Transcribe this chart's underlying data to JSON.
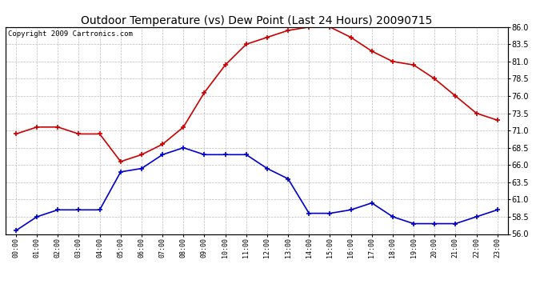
{
  "title": "Outdoor Temperature (vs) Dew Point (Last 24 Hours) 20090715",
  "copyright": "Copyright 2009 Cartronics.com",
  "hours": [
    "00:00",
    "01:00",
    "02:00",
    "03:00",
    "04:00",
    "05:00",
    "06:00",
    "07:00",
    "08:00",
    "09:00",
    "10:00",
    "11:00",
    "12:00",
    "13:00",
    "14:00",
    "15:00",
    "16:00",
    "17:00",
    "18:00",
    "19:00",
    "20:00",
    "21:00",
    "22:00",
    "23:00"
  ],
  "temp": [
    70.5,
    71.5,
    71.5,
    70.5,
    70.5,
    66.5,
    67.5,
    69.0,
    71.5,
    76.5,
    80.5,
    83.5,
    84.5,
    85.5,
    86.0,
    86.0,
    84.5,
    82.5,
    81.0,
    80.5,
    78.5,
    76.0,
    73.5,
    72.5
  ],
  "dew": [
    56.5,
    58.5,
    59.5,
    59.5,
    59.5,
    65.0,
    65.5,
    67.5,
    68.5,
    67.5,
    67.5,
    67.5,
    65.5,
    64.0,
    59.0,
    59.0,
    59.5,
    60.5,
    58.5,
    57.5,
    57.5,
    57.5,
    58.5,
    59.5
  ],
  "temp_color": "#cc0000",
  "dew_color": "#0000cc",
  "ylim": [
    56.0,
    86.0
  ],
  "yticks": [
    56.0,
    58.5,
    61.0,
    63.5,
    66.0,
    68.5,
    71.0,
    73.5,
    76.0,
    78.5,
    81.0,
    83.5,
    86.0
  ],
  "bg_color": "#ffffff",
  "plot_bg": "#ffffff",
  "grid_color": "#bbbbbb",
  "title_fontsize": 10,
  "copyright_fontsize": 6.5
}
